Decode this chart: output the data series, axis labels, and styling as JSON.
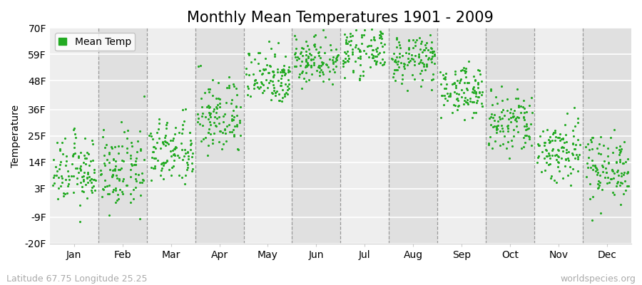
{
  "title": "Monthly Mean Temperatures 1901 - 2009",
  "ylabel": "Temperature",
  "xlabel_months": [
    "Jan",
    "Feb",
    "Mar",
    "Apr",
    "May",
    "Jun",
    "Jul",
    "Aug",
    "Sep",
    "Oct",
    "Nov",
    "Dec"
  ],
  "ytick_labels": [
    "-20F",
    "-9F",
    "3F",
    "14F",
    "25F",
    "36F",
    "48F",
    "59F",
    "70F"
  ],
  "ytick_values": [
    -20,
    -9,
    3,
    14,
    25,
    36,
    48,
    59,
    70
  ],
  "ylim": [
    -20,
    70
  ],
  "legend_label": "Mean Temp",
  "dot_color": "#22aa22",
  "background_color": "#ffffff",
  "plot_bg_light": "#eeeeee",
  "plot_bg_dark": "#e0e0e0",
  "subtitle_left": "Latitude 67.75 Longitude 25.25",
  "subtitle_right": "worldspecies.org",
  "monthly_mean_F": [
    10,
    10,
    18,
    33,
    50,
    57,
    61,
    57,
    44,
    30,
    19,
    12
  ],
  "monthly_std_F": [
    7,
    8,
    7,
    8,
    6,
    5,
    5,
    5,
    5,
    7,
    7,
    7
  ],
  "n_years": 109,
  "title_fontsize": 15,
  "label_fontsize": 10,
  "tick_fontsize": 10,
  "subtitle_fontsize": 9
}
